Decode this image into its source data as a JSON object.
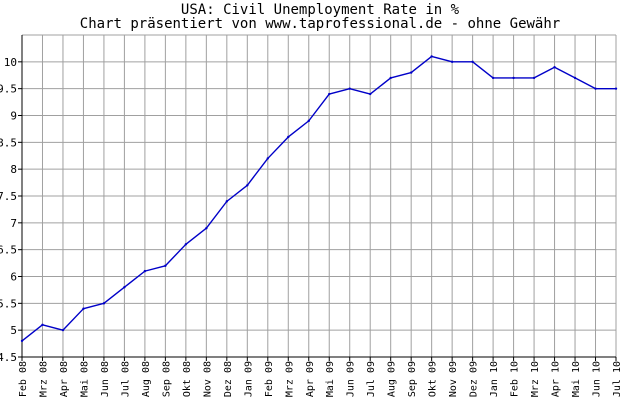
{
  "chart_data": {
    "type": "line",
    "title": "USA: Civil Unemployment Rate in %",
    "subtitle": "Chart präsentiert von www.taprofessional.de - ohne Gewähr",
    "xlabel": "",
    "ylabel": "",
    "categories": [
      "Feb 08",
      "Mrz 08",
      "Apr 08",
      "Mai 08",
      "Jun 08",
      "Jul 08",
      "Aug 08",
      "Sep 08",
      "Okt 08",
      "Nov 08",
      "Dez 08",
      "Jan 09",
      "Feb 09",
      "Mrz 09",
      "Apr 09",
      "Mai 09",
      "Jun 09",
      "Jul 09",
      "Aug 09",
      "Sep 09",
      "Okt 09",
      "Nov 09",
      "Dez 09",
      "Jan 10",
      "Feb 10",
      "Mrz 10",
      "Apr 10",
      "Mai 10",
      "Jun 10",
      "Jul 10"
    ],
    "series": [
      {
        "values": [
          4.8,
          5.1,
          5.0,
          5.4,
          5.5,
          5.8,
          6.1,
          6.2,
          6.6,
          6.9,
          7.4,
          7.7,
          8.2,
          8.6,
          8.9,
          9.4,
          9.5,
          9.4,
          9.7,
          9.8,
          10.1,
          10.0,
          10.0,
          9.7,
          9.7,
          9.7,
          9.9,
          9.7,
          9.5,
          9.5
        ],
        "color": "#0000c8"
      }
    ],
    "y_ticks": [
      "4.5",
      "5",
      "5.5",
      "6",
      "6.5",
      "7",
      "7.5",
      "8",
      "8.5",
      "9",
      "9.5",
      "10"
    ],
    "ylim": [
      4.5,
      10.5
    ],
    "grid": true,
    "grid_color": "#a0a0a0",
    "axis_color": "#000000",
    "background": "#ffffff"
  }
}
